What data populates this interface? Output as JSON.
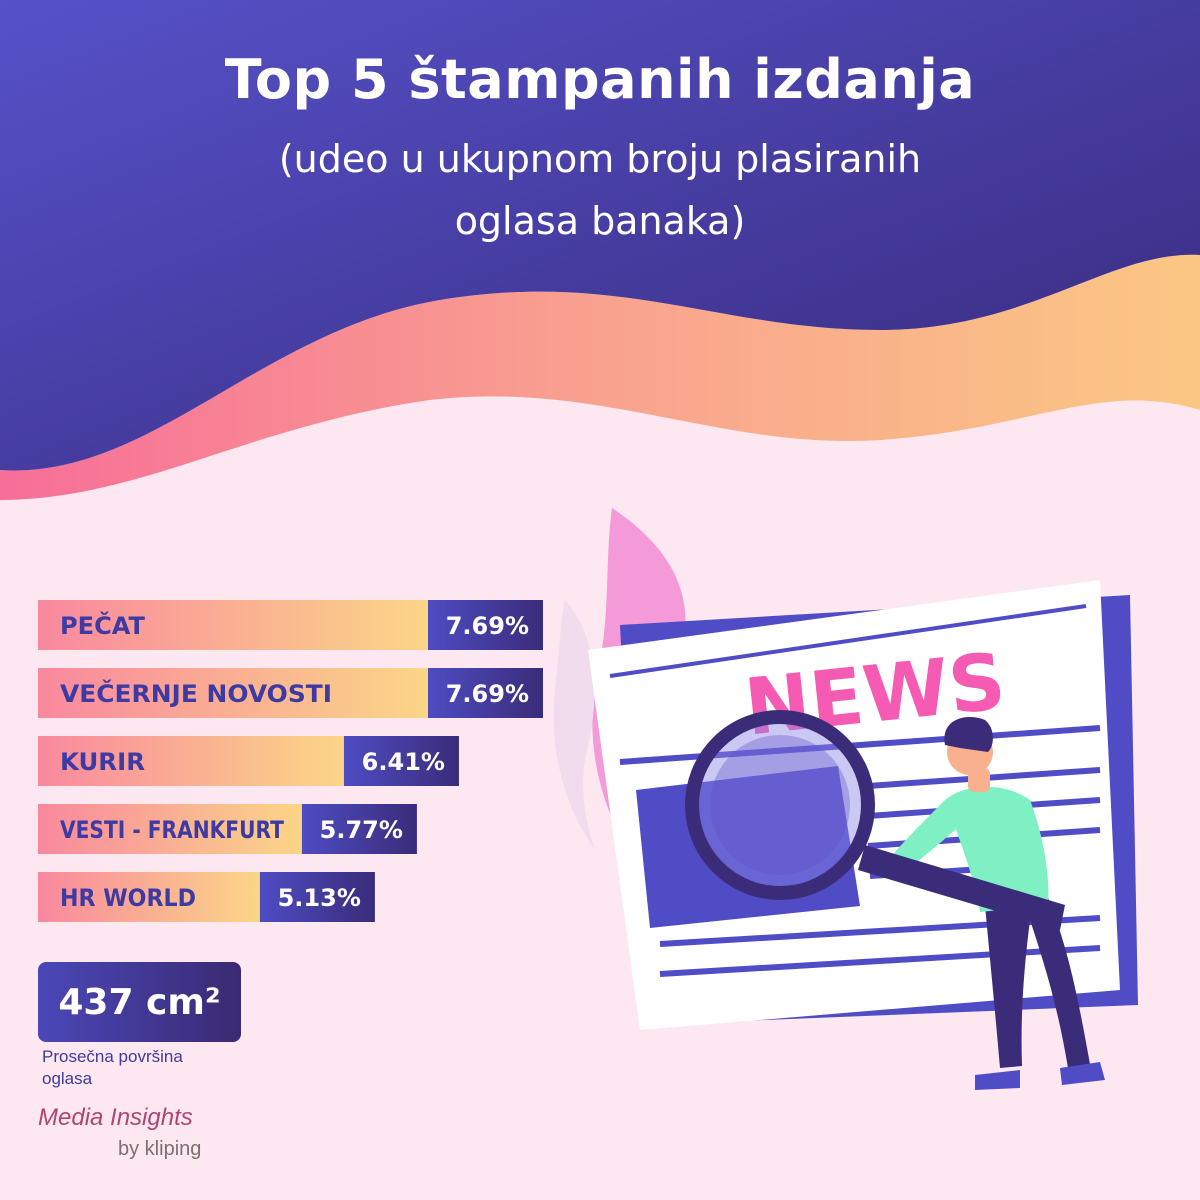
{
  "header": {
    "title": "Top 5 štampanih izdanja",
    "subtitle_line1": "(udeo u ukupnom broju plasiranih",
    "subtitle_line2": "oglasa banaka)"
  },
  "colors": {
    "header_start": "#4f4cc6",
    "header_end": "#3a2b78",
    "background": "#fde8f1",
    "bar_label_start": "#f9889e",
    "bar_label_end": "#fbd687",
    "bar_value": "#4543b3",
    "bar_text": "#3d3aa3"
  },
  "chart_data": {
    "type": "bar",
    "orientation": "horizontal",
    "categories": [
      "PEČAT",
      "VEČERNJE NOVOSTI",
      "KURIR",
      "VESTI - FRANKFURT",
      "HR WORLD"
    ],
    "values": [
      7.69,
      7.69,
      6.41,
      5.77,
      5.13
    ],
    "value_labels": [
      "7.69%",
      "7.69%",
      "6.41%",
      "5.77%",
      "5.13%"
    ],
    "title": "Top 5 štampanih izdanja",
    "subtitle": "(udeo u ukupnom broju plasiranih oglasa banaka)"
  },
  "stat": {
    "value": "437 cm²",
    "label_line1": "Prosečna površina",
    "label_line2": "oglasa"
  },
  "illustration": {
    "sign_text": "NEWS",
    "icons": [
      "newspaper-icon",
      "magnifier-icon",
      "person-icon",
      "leaf-icon"
    ]
  },
  "brand": {
    "name": "Media Insights",
    "by": "by kliping"
  }
}
